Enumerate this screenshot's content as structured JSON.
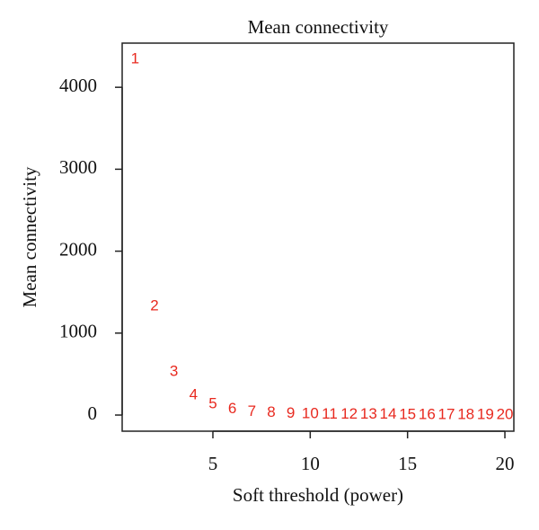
{
  "chart_data": {
    "type": "scatter",
    "title": "Mean connectivity",
    "x_label": "Soft threshold (power)",
    "y_label": "Mean connectivity",
    "x": [
      1,
      2,
      3,
      4,
      5,
      6,
      7,
      8,
      9,
      10,
      11,
      12,
      13,
      14,
      15,
      16,
      17,
      18,
      19,
      20
    ],
    "y": [
      4342,
      1327,
      526,
      241,
      130,
      70,
      40,
      25,
      15,
      10,
      7,
      5,
      4,
      3,
      2,
      2,
      1.5,
      1,
      1,
      1
    ],
    "color": "#e8291f",
    "xlim": [
      0.34,
      20.46
    ],
    "xticks": [
      5,
      10,
      15,
      20
    ],
    "ylim": [
      -197,
      4539
    ],
    "yticks": [
      0,
      1000,
      2000,
      3000,
      4000
    ]
  }
}
